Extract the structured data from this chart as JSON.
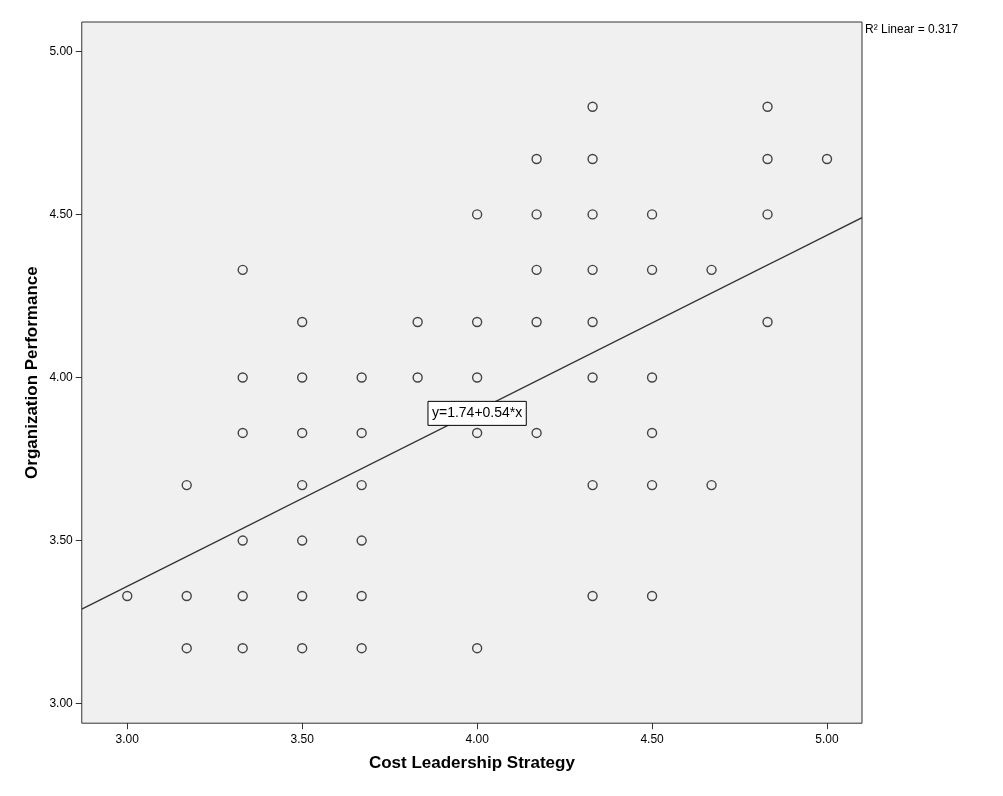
{
  "chart_data": {
    "type": "scatter",
    "xlabel": "Cost Leadership Strategy",
    "ylabel": "Organization Performance",
    "xlim": [
      2.87,
      5.1
    ],
    "xticks": [
      {
        "value": 3,
        "label": "3.00"
      },
      {
        "value": 3.5,
        "label": "3.50"
      },
      {
        "value": 4,
        "label": "4.00"
      },
      {
        "value": 4.5,
        "label": "4.50"
      },
      {
        "value": 5,
        "label": "5.00"
      }
    ],
    "ylim": [
      2.94,
      5.09
    ],
    "yticks": [
      {
        "value": 3,
        "label": "3.00"
      },
      {
        "value": 3.5,
        "label": "3.50"
      },
      {
        "value": 4,
        "label": "4.00"
      },
      {
        "value": 4.5,
        "label": "4.50"
      },
      {
        "value": 5,
        "label": "5.00"
      }
    ],
    "grid": false,
    "legend": false,
    "series": [
      {
        "marker": "circle",
        "color": "#444444",
        "x": [
          3,
          3.17,
          3.17,
          3.17,
          3.33,
          3.33,
          3.33,
          3.33,
          3.33,
          3.33,
          3.5,
          3.5,
          3.5,
          3.5,
          3.5,
          3.5,
          3.5,
          3.67,
          3.67,
          3.67,
          3.67,
          3.67,
          3.67,
          3.83,
          3.83,
          4,
          4,
          4,
          4,
          4,
          4.17,
          4.17,
          4.17,
          4.17,
          4.17,
          4.33,
          4.33,
          4.33,
          4.33,
          4.33,
          4.33,
          4.33,
          4.33,
          4.5,
          4.5,
          4.5,
          4.5,
          4.5,
          4.5,
          4.67,
          4.67,
          4.83,
          4.83,
          4.83,
          4.83,
          5
        ],
        "values": [
          3.33,
          3.67,
          3.33,
          3.17,
          4.33,
          4,
          3.83,
          3.5,
          3.33,
          3.17,
          4.17,
          4,
          3.83,
          3.67,
          3.5,
          3.33,
          3.17,
          4,
          3.83,
          3.67,
          3.5,
          3.33,
          3.17,
          4.17,
          4,
          4.5,
          4.17,
          4,
          3.83,
          3.17,
          4.67,
          4.5,
          4.33,
          4.17,
          3.83,
          4.83,
          4.67,
          4.5,
          4.33,
          4.17,
          4,
          3.67,
          3.33,
          4.5,
          4.33,
          4,
          3.83,
          3.67,
          3.33,
          4.33,
          3.67,
          4.83,
          4.67,
          4.5,
          4.17,
          4.67
        ]
      },
      {
        "type": "line",
        "color": "#333333",
        "x": [
          2.87,
          5.1
        ],
        "values": [
          3.29,
          4.49
        ]
      }
    ],
    "annotations": [
      {
        "text": "y=1.74+0.54*x",
        "x": 4,
        "y": 3.89
      },
      "R² Linear = 0.317"
    ]
  }
}
